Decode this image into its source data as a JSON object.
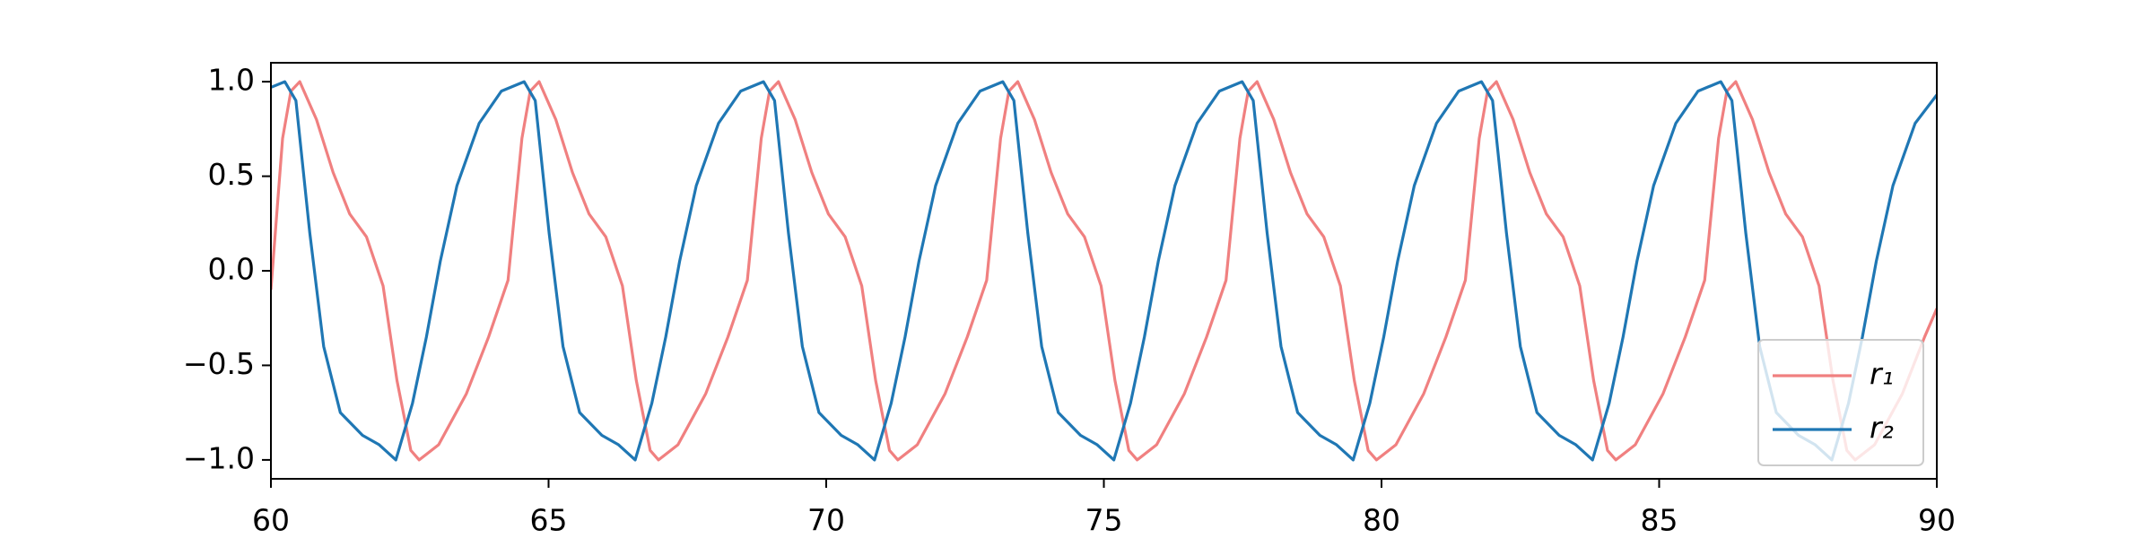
{
  "chart_data": {
    "type": "line",
    "xlim": [
      60,
      90
    ],
    "ylim": [
      -1.1,
      1.1
    ],
    "xticks": [
      60,
      65,
      70,
      75,
      80,
      85,
      90
    ],
    "yticks": [
      {
        "value": -1.0,
        "label": "−1.0"
      },
      {
        "value": -0.5,
        "label": "−0.5"
      },
      {
        "value": 0.0,
        "label": "0.0"
      },
      {
        "value": 0.5,
        "label": "0.5"
      },
      {
        "value": 1.0,
        "label": "1.0"
      }
    ],
    "grid": false,
    "legend": "lower right",
    "series": [
      {
        "name": "r₁",
        "color": "#f08080",
        "x": [
          60,
          60.21,
          60.36,
          60.52,
          60.82,
          61.12,
          61.42,
          61.72,
          62.02,
          62.27,
          62.52,
          62.67,
          63.02,
          63.52,
          63.92,
          64.27,
          64.52,
          64.67,
          64.83,
          65.13,
          65.43,
          65.73,
          66.03,
          66.33,
          66.58,
          66.83,
          66.98,
          67.33,
          67.83,
          68.23,
          68.58,
          68.83,
          68.98,
          69.14,
          69.44,
          69.74,
          70.04,
          70.34,
          70.64,
          70.89,
          71.14,
          71.29,
          71.64,
          72.14,
          72.54,
          72.89,
          73.14,
          73.29,
          73.45,
          73.75,
          74.05,
          74.35,
          74.65,
          74.95,
          75.2,
          75.45,
          75.6,
          75.95,
          76.45,
          76.85,
          77.2,
          77.45,
          77.6,
          77.76,
          78.06,
          78.36,
          78.66,
          78.96,
          79.26,
          79.51,
          79.76,
          79.91,
          80.26,
          80.76,
          81.16,
          81.51,
          81.76,
          81.91,
          82.07,
          82.37,
          82.67,
          82.97,
          83.27,
          83.57,
          83.82,
          84.07,
          84.22,
          84.57,
          85.07,
          85.47,
          85.82,
          86.07,
          86.22,
          86.38,
          86.68,
          86.98,
          87.28,
          87.58,
          87.88,
          88.13,
          88.38,
          88.53,
          88.88,
          89.38,
          89.78,
          90
        ],
        "values": [
          -0.1,
          0.7,
          0.95,
          1.0,
          0.8,
          0.52,
          0.3,
          0.18,
          -0.08,
          -0.58,
          -0.95,
          -1.0,
          -0.92,
          -0.65,
          -0.35,
          -0.05,
          0.7,
          0.95,
          1.0,
          0.8,
          0.52,
          0.3,
          0.18,
          -0.08,
          -0.58,
          -0.95,
          -1.0,
          -0.92,
          -0.65,
          -0.35,
          -0.05,
          0.7,
          0.95,
          1.0,
          0.8,
          0.52,
          0.3,
          0.18,
          -0.08,
          -0.58,
          -0.95,
          -1.0,
          -0.92,
          -0.65,
          -0.35,
          -0.05,
          0.7,
          0.95,
          1.0,
          0.8,
          0.52,
          0.3,
          0.18,
          -0.08,
          -0.58,
          -0.95,
          -1.0,
          -0.92,
          -0.65,
          -0.35,
          -0.05,
          0.7,
          0.95,
          1.0,
          0.8,
          0.52,
          0.3,
          0.18,
          -0.08,
          -0.58,
          -0.95,
          -1.0,
          -0.92,
          -0.65,
          -0.35,
          -0.05,
          0.7,
          0.95,
          1.0,
          0.8,
          0.52,
          0.3,
          0.18,
          -0.08,
          -0.58,
          -0.95,
          -1.0,
          -0.92,
          -0.65,
          -0.35,
          -0.05,
          0.7,
          0.95,
          1.0,
          0.8,
          0.52,
          0.3,
          0.18,
          -0.08,
          -0.58,
          -0.95,
          -1.0,
          -0.92,
          -0.65,
          -0.35,
          -0.2
        ]
      },
      {
        "name": "r₂",
        "color": "#1f77b4",
        "x": [
          60,
          60.25,
          60.45,
          60.7,
          60.95,
          61.25,
          61.65,
          61.95,
          62.25,
          62.55,
          62.8,
          63.05,
          63.35,
          63.75,
          64.15,
          64.56,
          64.76,
          65.01,
          65.26,
          65.56,
          65.96,
          66.26,
          66.56,
          66.86,
          67.11,
          67.36,
          67.66,
          68.06,
          68.46,
          68.87,
          69.07,
          69.32,
          69.57,
          69.87,
          70.27,
          70.57,
          70.87,
          71.17,
          71.42,
          71.67,
          71.97,
          72.37,
          72.77,
          73.18,
          73.38,
          73.63,
          73.88,
          74.18,
          74.58,
          74.88,
          75.18,
          75.48,
          75.73,
          75.98,
          76.28,
          76.68,
          77.08,
          77.49,
          77.69,
          77.94,
          78.19,
          78.49,
          78.89,
          79.19,
          79.49,
          79.79,
          80.04,
          80.29,
          80.59,
          80.99,
          81.39,
          81.8,
          82.0,
          82.25,
          82.5,
          82.8,
          83.2,
          83.5,
          83.8,
          84.1,
          84.35,
          84.6,
          84.9,
          85.3,
          85.7,
          86.11,
          86.31,
          86.56,
          86.81,
          87.11,
          87.51,
          87.81,
          88.11,
          88.41,
          88.66,
          88.91,
          89.21,
          89.61,
          90
        ],
        "values": [
          0.97,
          1.0,
          0.9,
          0.2,
          -0.4,
          -0.75,
          -0.87,
          -0.92,
          -1.0,
          -0.7,
          -0.35,
          0.05,
          0.45,
          0.78,
          0.95,
          1.0,
          0.9,
          0.2,
          -0.4,
          -0.75,
          -0.87,
          -0.92,
          -1.0,
          -0.7,
          -0.35,
          0.05,
          0.45,
          0.78,
          0.95,
          1.0,
          0.9,
          0.2,
          -0.4,
          -0.75,
          -0.87,
          -0.92,
          -1.0,
          -0.7,
          -0.35,
          0.05,
          0.45,
          0.78,
          0.95,
          1.0,
          0.9,
          0.2,
          -0.4,
          -0.75,
          -0.87,
          -0.92,
          -1.0,
          -0.7,
          -0.35,
          0.05,
          0.45,
          0.78,
          0.95,
          1.0,
          0.9,
          0.2,
          -0.4,
          -0.75,
          -0.87,
          -0.92,
          -1.0,
          -0.7,
          -0.35,
          0.05,
          0.45,
          0.78,
          0.95,
          1.0,
          0.9,
          0.2,
          -0.4,
          -0.75,
          -0.87,
          -0.92,
          -1.0,
          -0.7,
          -0.35,
          0.05,
          0.45,
          0.78,
          0.95,
          1.0,
          0.9,
          0.2,
          -0.4,
          -0.75,
          -0.87,
          -0.92,
          -1.0,
          -0.7,
          -0.35,
          0.05,
          0.45,
          0.78,
          0.93
        ]
      }
    ]
  }
}
